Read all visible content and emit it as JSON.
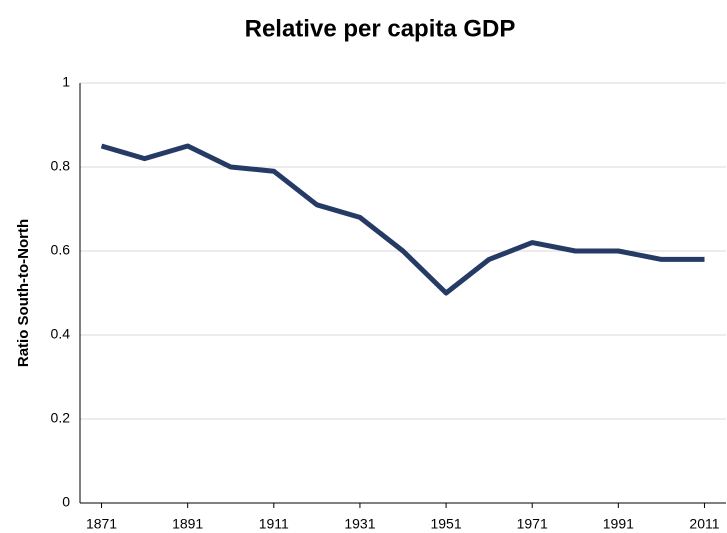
{
  "chart_data": {
    "type": "line",
    "title": "Relative per capita GDP",
    "y_label": "Ratio South-to-North",
    "x": [
      1871,
      1881,
      1891,
      1901,
      1911,
      1921,
      1931,
      1941,
      1951,
      1961,
      1971,
      1981,
      1991,
      2001,
      2011
    ],
    "values": [
      0.85,
      0.82,
      0.85,
      0.8,
      0.79,
      0.71,
      0.68,
      0.6,
      0.5,
      0.58,
      0.62,
      0.6,
      0.6,
      0.58,
      0.58
    ],
    "color": "#253b66",
    "xlim": [
      1866,
      2016
    ],
    "xticks": [
      1871,
      1891,
      1911,
      1931,
      1951,
      1971,
      1991,
      2011
    ],
    "ylim": [
      0,
      1
    ],
    "yticks": [
      0,
      0.2,
      0.4,
      0.6,
      0.8,
      1
    ],
    "grid": true
  }
}
